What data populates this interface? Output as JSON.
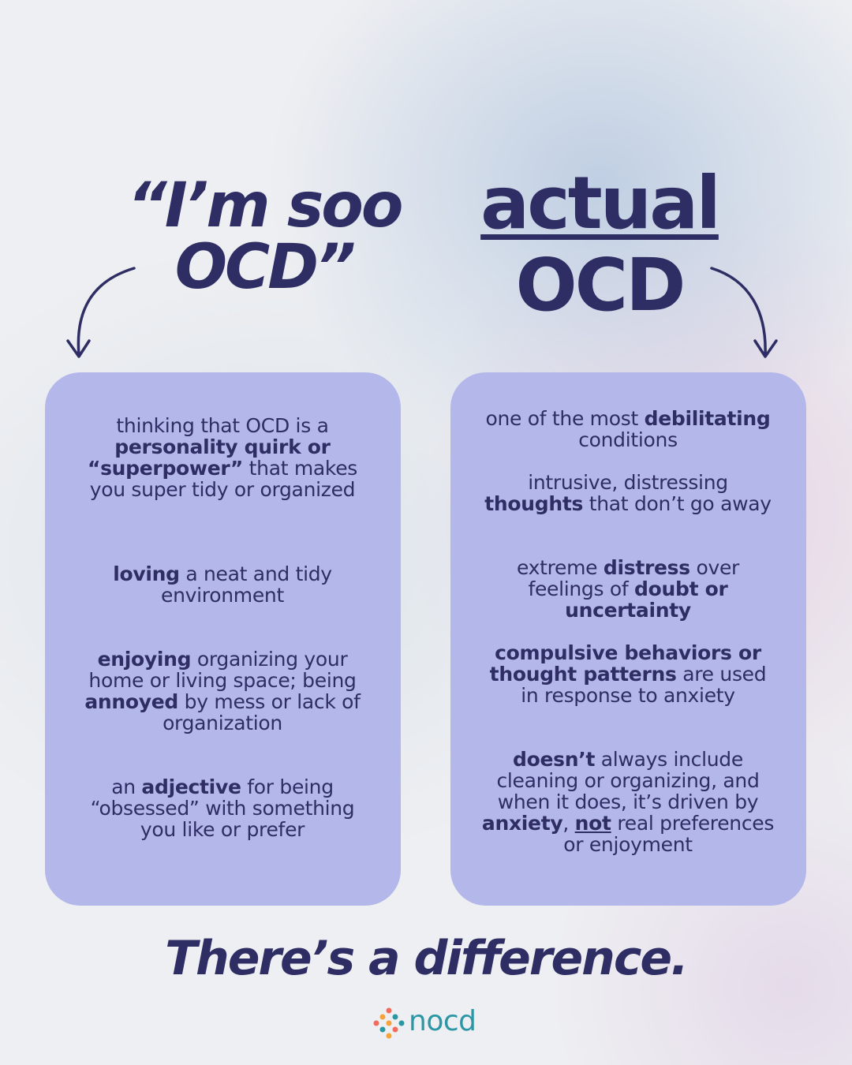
{
  "left_heading": [
    "“I’m soo",
    "OCD”"
  ],
  "right_heading": [
    "actual",
    "OCD"
  ],
  "left_items": [
    [
      {
        "text": "thinking that OCD is a ",
        "style": "regular"
      },
      {
        "text": "personality quirk or “superpower”",
        "style": "bold"
      },
      {
        "text": " that makes you super tidy or organized",
        "style": "regular"
      }
    ],
    [
      {
        "text": "loving",
        "style": "bold"
      },
      {
        "text": " a neat and tidy environment",
        "style": "regular"
      }
    ],
    [
      {
        "text": "enjoying",
        "style": "bold"
      },
      {
        "text": " organizing your home or living space; being ",
        "style": "regular"
      },
      {
        "text": "annoyed",
        "style": "bold"
      },
      {
        "text": " by mess or lack of organization",
        "style": "regular"
      }
    ],
    [
      {
        "text": "an ",
        "style": "regular"
      },
      {
        "text": "adjective",
        "style": "bold"
      },
      {
        "text": " for being “obsessed” with something you like or prefer",
        "style": "regular"
      }
    ]
  ],
  "right_items": [
    [
      {
        "text": "one of the most ",
        "style": "regular"
      },
      {
        "text": "debilitating",
        "style": "bold"
      },
      {
        "text": " conditions",
        "style": "regular"
      }
    ],
    [
      {
        "text": "intrusive, distressing ",
        "style": "regular"
      },
      {
        "text": "thoughts",
        "style": "bold"
      },
      {
        "text": " that don’t go away",
        "style": "regular"
      }
    ],
    [
      {
        "text": "extreme ",
        "style": "regular"
      },
      {
        "text": "distress",
        "style": "bold"
      },
      {
        "text": " over feelings of ",
        "style": "regular"
      },
      {
        "text": "doubt or uncertainty",
        "style": "bold"
      }
    ],
    [
      {
        "text": "compulsive behaviors or thought patterns",
        "style": "bold"
      },
      {
        "text": " are used in response to anxiety",
        "style": "regular"
      }
    ],
    [
      {
        "text": "doesn’t",
        "style": "bold"
      },
      {
        "text": " always include cleaning or organizing, and when it does, it’s driven by ",
        "style": "regular"
      },
      {
        "text": "anxiety",
        "style": "bold"
      },
      {
        "text": ", ",
        "style": "regular"
      },
      {
        "text": "not",
        "style": "bold-underline"
      },
      {
        "text": " real preferences or enjoyment",
        "style": "regular"
      }
    ]
  ],
  "tagline": "There’s a difference.",
  "logo": "nocd"
}
